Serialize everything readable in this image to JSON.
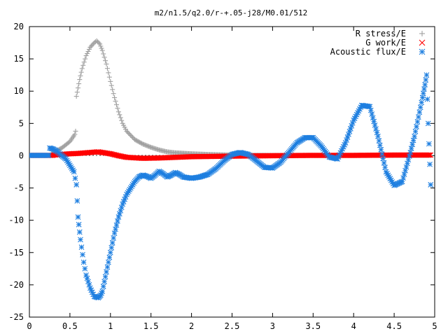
{
  "chart_data": {
    "type": "scatter",
    "title": "m2/n1.5/q2.0/r-+.05-j28/M0.01/512",
    "xlabel": "",
    "ylabel": "",
    "xlim": [
      0,
      5
    ],
    "ylim": [
      -25,
      20
    ],
    "grid": false,
    "legend_position": "top-right",
    "xticks": [
      0,
      0.5,
      1,
      1.5,
      2,
      2.5,
      3,
      3.5,
      4,
      4.5,
      5
    ],
    "xtick_labels": [
      "0",
      "0.5",
      "1",
      "1.5",
      "2",
      "2.5",
      "3",
      "3.5",
      "4",
      "4.5",
      "5"
    ],
    "yticks": [
      -25,
      -20,
      -15,
      -10,
      -5,
      0,
      5,
      10,
      15,
      20
    ],
    "ytick_labels": [
      "-25",
      "-20",
      "-15",
      "-10",
      "-5",
      "0",
      "5",
      "10",
      "15",
      "20"
    ],
    "series": [
      {
        "name": "R stress/E",
        "marker": "plus",
        "color": "#a0a0a0",
        "x": [
          0.28,
          0.4,
          0.5,
          0.56,
          0.57,
          0.58,
          0.6,
          0.62,
          0.65,
          0.7,
          0.75,
          0.8,
          0.83,
          0.87,
          0.9,
          0.95,
          1.0,
          1.05,
          1.1,
          1.15,
          1.2,
          1.3,
          1.4,
          1.5,
          1.6,
          1.7,
          1.8,
          2.0,
          2.2,
          2.5,
          3.0,
          3.5,
          4.0,
          4.5,
          4.95
        ],
        "y": [
          0.4,
          1.2,
          2.2,
          3.3,
          3.8,
          9.2,
          10.5,
          11.8,
          13.5,
          15.5,
          16.8,
          17.5,
          17.8,
          17.3,
          16.3,
          14.2,
          11.5,
          9.0,
          6.8,
          5.0,
          3.8,
          2.5,
          1.8,
          1.3,
          0.9,
          0.6,
          0.45,
          0.3,
          0.2,
          0.1,
          0.05,
          0.05,
          0.05,
          0.05,
          0.05
        ]
      },
      {
        "name": "G work/E",
        "marker": "cross",
        "color": "#ff0000",
        "x": [
          0.3,
          0.4,
          0.5,
          0.6,
          0.7,
          0.8,
          0.85,
          0.9,
          1.0,
          1.1,
          1.2,
          1.4,
          1.6,
          1.8,
          2.0,
          2.3,
          2.6,
          3.0,
          3.5,
          4.0,
          4.5,
          4.95
        ],
        "y": [
          0.1,
          0.2,
          0.3,
          0.35,
          0.45,
          0.55,
          0.6,
          0.5,
          0.3,
          0.0,
          -0.25,
          -0.4,
          -0.35,
          -0.25,
          -0.15,
          -0.1,
          -0.05,
          0.0,
          0.05,
          0.05,
          0.1,
          0.1
        ]
      },
      {
        "name": "Acoustic flux/E",
        "marker": "star",
        "color": "#1e7fe0",
        "x": [
          0.25,
          0.3,
          0.35,
          0.4,
          0.45,
          0.5,
          0.55,
          0.58,
          0.6,
          0.63,
          0.67,
          0.7,
          0.75,
          0.8,
          0.85,
          0.88,
          0.9,
          0.95,
          1.0,
          1.05,
          1.1,
          1.15,
          1.2,
          1.25,
          1.3,
          1.35,
          1.4,
          1.45,
          1.5,
          1.55,
          1.6,
          1.65,
          1.7,
          1.75,
          1.8,
          1.85,
          1.9,
          2.0,
          2.1,
          2.2,
          2.3,
          2.4,
          2.5,
          2.6,
          2.7,
          2.8,
          2.9,
          3.0,
          3.1,
          3.2,
          3.3,
          3.4,
          3.5,
          3.6,
          3.7,
          3.8,
          3.9,
          4.0,
          4.1,
          4.2,
          4.3,
          4.4,
          4.5,
          4.6,
          4.7,
          4.75,
          4.8,
          4.85,
          4.88,
          4.9,
          4.92,
          4.95
        ],
        "y": [
          1.2,
          1.0,
          0.6,
          0.0,
          -0.5,
          -1.5,
          -2.5,
          -4.5,
          -9.5,
          -13,
          -16.5,
          -18.5,
          -20.5,
          -21.8,
          -22.0,
          -21.6,
          -21.0,
          -18.0,
          -15.0,
          -12.0,
          -9.5,
          -7.5,
          -6.0,
          -5.0,
          -4.0,
          -3.3,
          -3.0,
          -3.2,
          -3.5,
          -3.0,
          -2.4,
          -2.8,
          -3.3,
          -3.0,
          -2.6,
          -2.9,
          -3.3,
          -3.5,
          -3.3,
          -2.9,
          -2.0,
          -0.8,
          0.2,
          0.5,
          0.2,
          -0.8,
          -1.8,
          -1.9,
          -1.0,
          0.5,
          2.0,
          2.8,
          2.8,
          1.5,
          -0.2,
          -0.5,
          2.0,
          5.5,
          7.8,
          7.6,
          3.0,
          -2.5,
          -4.6,
          -4.0,
          0.5,
          3.0,
          6.0,
          9.0,
          11.0,
          12.5,
          5.0,
          -4.5
        ]
      }
    ]
  }
}
